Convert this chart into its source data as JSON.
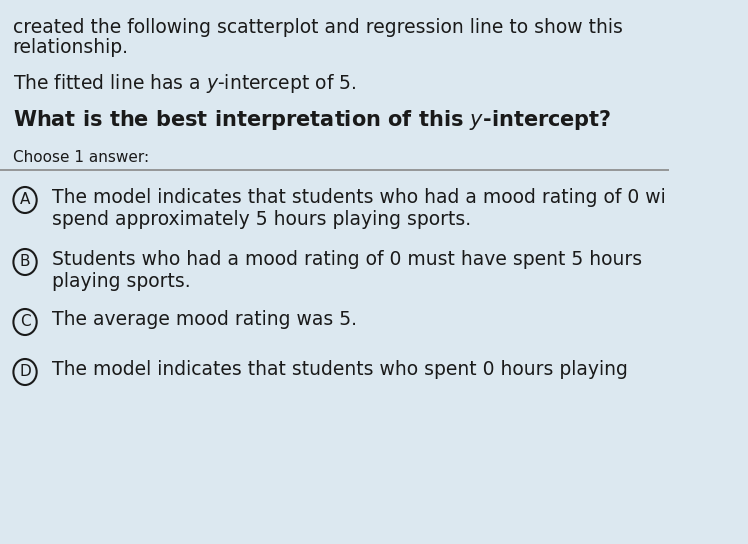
{
  "bg_color": "#dce8f0",
  "text_color": "#1a1a1a",
  "intro_line1": "created the following scatterplot and regression line to show this",
  "intro_line2": "relationship.",
  "fitted_line": "The fitted line has a $y$-intercept of 5.",
  "question": "What is the best interpretation of this $y$-intercept?",
  "choose": "Choose 1 answer:",
  "divider_color": "#888888",
  "option_A_label": "A",
  "option_A_text_line1": "The model indicates that students who had a mood rating of 0 wi",
  "option_A_text_line2": "spend approximately 5 hours playing sports.",
  "option_B_label": "B",
  "option_B_text_line1": "Students who had a mood rating of 0 must have spent 5 hours",
  "option_B_text_line2": "playing sports.",
  "option_C_label": "C",
  "option_C_text": "The average mood rating was 5.",
  "option_D_label": "D",
  "option_D_text": "The model indicates that students who spent 0 hours playing"
}
